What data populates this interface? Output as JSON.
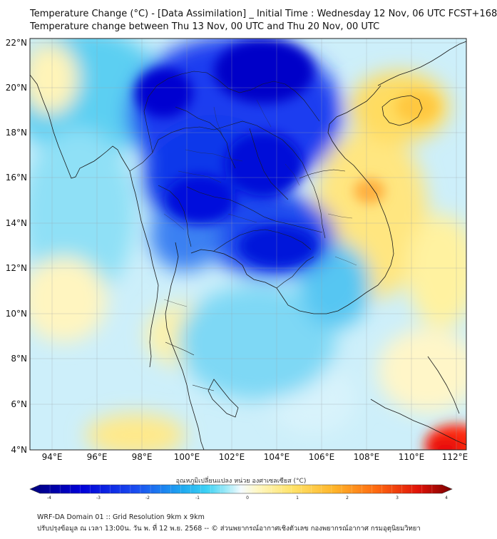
{
  "title_line1": "Temperature Change (°C) - [Data Assimilation] _ Initial Time : Wednesday 12 Nov, 06 UTC FCST+168",
  "title_line2": "Temperature change between Thu 13 Nov, 00 UTC and Thu 20 Nov, 00 UTC",
  "map": {
    "lon_range": [
      93,
      112.5
    ],
    "lat_range": [
      4,
      22.2
    ],
    "lat_ticks": [
      "4°N",
      "6°N",
      "8°N",
      "10°N",
      "12°N",
      "14°N",
      "16°N",
      "18°N",
      "20°N",
      "22°N"
    ],
    "lon_ticks": [
      "94°E",
      "96°E",
      "98°E",
      "100°E",
      "102°E",
      "104°E",
      "106°E",
      "108°E",
      "110°E",
      "112°E"
    ]
  },
  "colorbar": {
    "label": "อุณหภูมิเปลี่ยนแปลง หน่วย องศาเซลเซียส (°C)",
    "range": [
      -4,
      4
    ],
    "ticks": [
      "-4",
      "-3",
      "-2",
      "-1",
      "0",
      "1",
      "2",
      "3",
      "4"
    ],
    "colors": [
      "#00007a",
      "#0000d8",
      "#1a4cf0",
      "#1ea8f0",
      "#3ed2f4",
      "#a9ecf8",
      "#f4fbff",
      "#fff7c2",
      "#ffe36a",
      "#ffb52a",
      "#ff6a10",
      "#e01208",
      "#7a0000"
    ]
  },
  "footer": {
    "line1": "WRF-DA Domain 01 :: Grid Resolution 9km x 9km",
    "line2": "ปรับปรุงข้อมูล ณ เวลา 13:00น. วัน พ. ที่ 12 พ.ย. 2568 -- © ส่วนพยากรณ์อากาศเชิงตัวเลข กองพยากรณ์อากาศ กรมอุตุนิยมวิทยา"
  }
}
